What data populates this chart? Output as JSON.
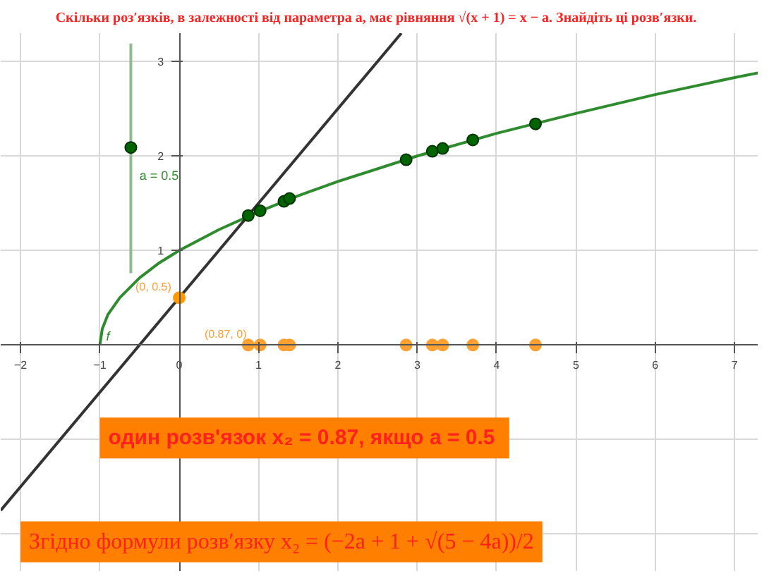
{
  "chart_data": {
    "type": "line",
    "title": "Скільки розʹязків, в залежності від параметра а,  має рівняння  √(x + 1) = x − a. Знайдіть ці розвʹязки.",
    "xlim": [
      -2.25,
      7.3
    ],
    "ylim": [
      -2.4,
      3.3
    ],
    "xticks": [
      -2,
      -1,
      0,
      1,
      2,
      3,
      4,
      5,
      6,
      7
    ],
    "yticks": [
      {
        "value": -2,
        "label": null
      },
      {
        "value": -1,
        "label": null
      },
      1,
      2,
      3
    ],
    "grid": true,
    "series": [
      {
        "type": "line",
        "color": "#2e8b2e",
        "x": [
          -1,
          -0.97,
          -0.9,
          -0.75,
          -0.5,
          -0.25,
          0,
          0.5,
          1,
          1.5,
          2,
          3,
          4,
          5,
          6,
          7,
          7.3
        ],
        "values": [
          0,
          0.17,
          0.32,
          0.5,
          0.71,
          0.87,
          1,
          1.22,
          1.41,
          1.58,
          1.73,
          2,
          2.24,
          2.45,
          2.65,
          2.83,
          2.88
        ]
      },
      {
        "type": "line",
        "color": "#333333",
        "x": [
          -2.25,
          2.8
        ],
        "values": [
          -1.75,
          3.3
        ]
      },
      {
        "type": "line",
        "color": "#8fbc8f",
        "x": [
          -0.61,
          -0.61
        ],
        "values": [
          0.76,
          3.19
        ]
      },
      {
        "type": "scatter",
        "marker": "circle",
        "color": "#006400",
        "x": [
          -0.61
        ],
        "values": [
          2.09
        ]
      },
      {
        "type": "scatter",
        "marker": "circle",
        "color": "#006400",
        "x": [
          0.87,
          1.02,
          1.32,
          1.39,
          2.86,
          3.19,
          3.32,
          3.7,
          4.49
        ],
        "values": [
          1.37,
          1.42,
          1.52,
          1.55,
          1.96,
          2.05,
          2.08,
          2.17,
          2.34
        ]
      },
      {
        "type": "scatter",
        "marker": "circle",
        "color": "#ffa033",
        "x": [
          0.87,
          1.02,
          1.32,
          1.39,
          2.86,
          3.19,
          3.32,
          3.7,
          4.49
        ],
        "values": [
          0,
          0,
          0,
          0,
          0,
          0,
          0,
          0,
          0
        ]
      },
      {
        "type": "scatter",
        "marker": "circle",
        "color": "#ff9900",
        "x": [
          0
        ],
        "values": [
          0.5
        ]
      }
    ],
    "annotations": [
      {
        "text": "(0, 0.5)",
        "x": 0,
        "y": 0.5
      },
      {
        "text": "(0.87, 0)",
        "x": 0.87,
        "y": 0
      },
      "a = 0.5",
      "f",
      "один розвʹязок  x₂ = 0.87, якщо a = 0.5",
      "Згідно формули розвʹязку x₂ = (−2a + 1 + √(5 − 4a))/2"
    ]
  }
}
